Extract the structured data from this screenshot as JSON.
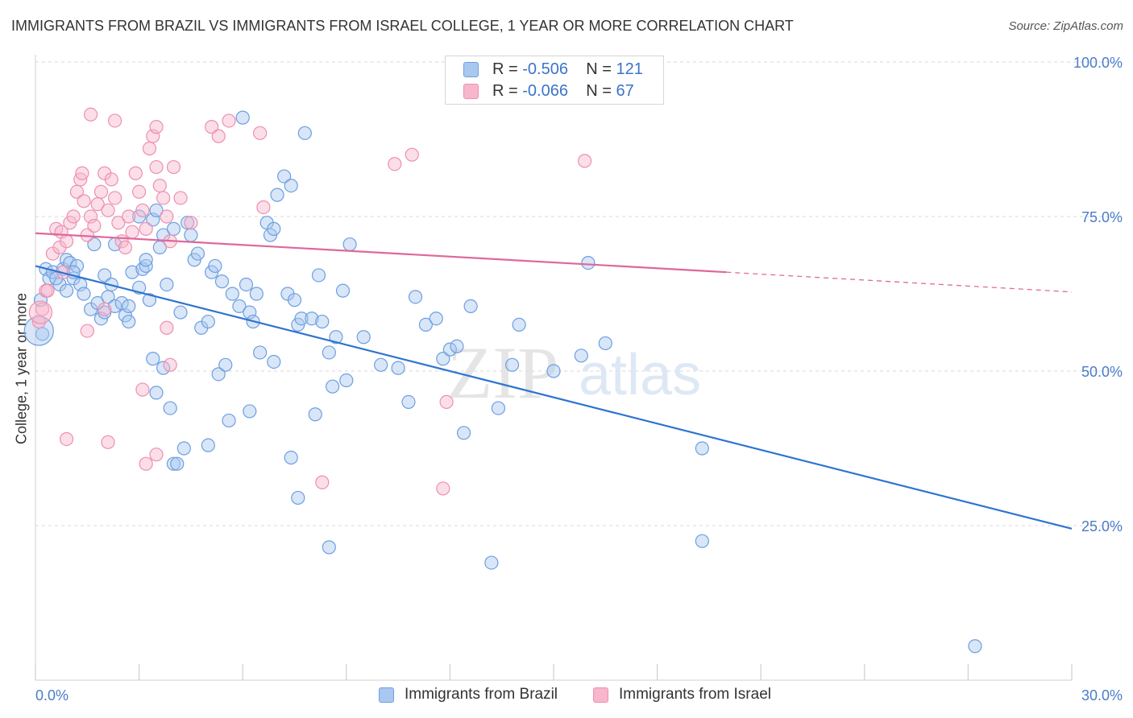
{
  "title": "IMMIGRANTS FROM BRAZIL VS IMMIGRANTS FROM ISRAEL COLLEGE, 1 YEAR OR MORE CORRELATION CHART",
  "source": "Source: ZipAtlas.com",
  "watermark": {
    "zip": "ZIP",
    "atlas": "atlas"
  },
  "legend": {
    "rows": [
      {
        "r_label": "R = ",
        "r_value": "-0.506",
        "n_label": "N = ",
        "n_value": "121"
      },
      {
        "r_label": "R = ",
        "r_value": "-0.066",
        "n_label": "N = ",
        "n_value": "67"
      }
    ]
  },
  "bottom_legend": [
    "Immigrants from Brazil",
    "Immigrants from Israel"
  ],
  "colors": {
    "brazil_fill": "#a9c8f0",
    "brazil_stroke": "#6d9fe0",
    "brazil_line": "#2f74d0",
    "israel_fill": "#f7b6cb",
    "israel_stroke": "#ee8fae",
    "israel_line": "#e0679a",
    "tick_text": "#4a7cc9",
    "grid": "#d8d8d8"
  },
  "chart_data": {
    "type": "scatter",
    "title": "IMMIGRANTS FROM BRAZIL VS IMMIGRANTS FROM ISRAEL COLLEGE, 1 YEAR OR MORE CORRELATION CHART",
    "xlabel": "",
    "ylabel": "College, 1 year or more",
    "xlim": [
      0,
      30
    ],
    "ylim": [
      0,
      100
    ],
    "x_tick_labels": [
      "0.0%",
      "30.0%"
    ],
    "y_tick_values": [
      25,
      50,
      75,
      100
    ],
    "y_tick_labels": [
      "25.0%",
      "50.0%",
      "75.0%",
      "100.0%"
    ],
    "grid": "horizontal dashed",
    "legend_position": "top-center",
    "series": [
      {
        "name": "Immigrants from Brazil",
        "r": -0.506,
        "n": 121,
        "trend": {
          "x": [
            0,
            30
          ],
          "y": [
            67.0,
            24.5
          ]
        },
        "points": [
          [
            0.15,
            61.5
          ],
          [
            0.3,
            66.5
          ],
          [
            0.4,
            65
          ],
          [
            0.5,
            66
          ],
          [
            0.7,
            64
          ],
          [
            0.8,
            66.5
          ],
          [
            0.9,
            68
          ],
          [
            1.0,
            67.5
          ],
          [
            1.1,
            65
          ],
          [
            1.2,
            67
          ],
          [
            1.3,
            64
          ],
          [
            1.4,
            62.5
          ],
          [
            1.6,
            60
          ],
          [
            1.8,
            61
          ],
          [
            1.9,
            58.5
          ],
          [
            2.0,
            65.5
          ],
          [
            2.1,
            62
          ],
          [
            2.2,
            64
          ],
          [
            2.3,
            60.5
          ],
          [
            2.5,
            61
          ],
          [
            2.6,
            59
          ],
          [
            2.7,
            60.5
          ],
          [
            2.8,
            66
          ],
          [
            3.0,
            63.5
          ],
          [
            3.1,
            66.5
          ],
          [
            3.2,
            67
          ],
          [
            3.3,
            61.5
          ],
          [
            1.7,
            70.5
          ],
          [
            2.3,
            70.5
          ],
          [
            3.0,
            75
          ],
          [
            3.4,
            74.5
          ],
          [
            3.5,
            76
          ],
          [
            3.6,
            70
          ],
          [
            3.7,
            72
          ],
          [
            3.8,
            64
          ],
          [
            4.0,
            73
          ],
          [
            4.2,
            59.5
          ],
          [
            4.4,
            74
          ],
          [
            4.5,
            72
          ],
          [
            4.6,
            68
          ],
          [
            4.8,
            57
          ],
          [
            5.0,
            58
          ],
          [
            5.1,
            66
          ],
          [
            5.2,
            67
          ],
          [
            4.7,
            69
          ],
          [
            5.3,
            49.5
          ],
          [
            5.5,
            51
          ],
          [
            5.7,
            62.5
          ],
          [
            5.9,
            60.5
          ],
          [
            6.1,
            64
          ],
          [
            6.2,
            59.5
          ],
          [
            6.3,
            58
          ],
          [
            6.4,
            62.5
          ],
          [
            6.0,
            91
          ],
          [
            6.5,
            53
          ],
          [
            6.7,
            74
          ],
          [
            6.8,
            72
          ],
          [
            6.9,
            73
          ],
          [
            7.2,
            81.5
          ],
          [
            7.3,
            62.5
          ],
          [
            7.5,
            61.5
          ],
          [
            7.6,
            57.5
          ],
          [
            7.7,
            58.5
          ],
          [
            7.8,
            88.5
          ],
          [
            7.0,
            78.5
          ],
          [
            7.4,
            80
          ],
          [
            8.0,
            58.5
          ],
          [
            8.2,
            65.5
          ],
          [
            8.3,
            58
          ],
          [
            8.5,
            53
          ],
          [
            8.6,
            47.5
          ],
          [
            8.7,
            55.5
          ],
          [
            9.0,
            48.5
          ],
          [
            9.1,
            70.5
          ],
          [
            9.5,
            55.5
          ],
          [
            10.0,
            51
          ],
          [
            10.5,
            50.5
          ],
          [
            10.8,
            45
          ],
          [
            11.0,
            62
          ],
          [
            11.3,
            57.5
          ],
          [
            11.6,
            58.5
          ],
          [
            11.8,
            52
          ],
          [
            12.0,
            53.5
          ],
          [
            12.2,
            54
          ],
          [
            12.4,
            40
          ],
          [
            12.6,
            60.5
          ],
          [
            13.4,
            44
          ],
          [
            13.8,
            51
          ],
          [
            14.0,
            57.5
          ],
          [
            15.0,
            50
          ],
          [
            15.8,
            52.5
          ],
          [
            16.0,
            67.5
          ],
          [
            16.5,
            54.5
          ],
          [
            3.4,
            52
          ],
          [
            3.5,
            46.5
          ],
          [
            3.7,
            50.5
          ],
          [
            3.9,
            44
          ],
          [
            4.3,
            37.5
          ],
          [
            4.0,
            35
          ],
          [
            4.1,
            35
          ],
          [
            5.0,
            38
          ],
          [
            5.6,
            42
          ],
          [
            6.2,
            43.5
          ],
          [
            6.9,
            51.5
          ],
          [
            7.4,
            36
          ],
          [
            7.6,
            29.5
          ],
          [
            8.1,
            43
          ],
          [
            8.5,
            21.5
          ],
          [
            13.2,
            19
          ],
          [
            19.3,
            37.5
          ],
          [
            19.3,
            22.5
          ],
          [
            27.2,
            5.5
          ],
          [
            0.2,
            56
          ],
          [
            0.6,
            65
          ],
          [
            2.0,
            59.5
          ],
          [
            1.1,
            66
          ],
          [
            0.9,
            63
          ],
          [
            3.2,
            68
          ],
          [
            2.7,
            58
          ],
          [
            5.4,
            64.5
          ],
          [
            8.9,
            63
          ]
        ]
      },
      {
        "name": "Immigrants from Israel",
        "r": -0.066,
        "n": 67,
        "trend": {
          "x": [
            0,
            20
          ],
          "y": [
            72.3,
            66.0
          ],
          "dashed_to": {
            "x": 30,
            "y": 62.8
          }
        },
        "points": [
          [
            0.1,
            58
          ],
          [
            0.2,
            60
          ],
          [
            0.3,
            63
          ],
          [
            0.35,
            63
          ],
          [
            0.5,
            69
          ],
          [
            0.6,
            73
          ],
          [
            0.7,
            70
          ],
          [
            0.75,
            72.5
          ],
          [
            0.8,
            66
          ],
          [
            0.9,
            71
          ],
          [
            1.0,
            74
          ],
          [
            1.1,
            75
          ],
          [
            1.2,
            79
          ],
          [
            1.3,
            81
          ],
          [
            1.35,
            82
          ],
          [
            1.4,
            77.5
          ],
          [
            1.5,
            72
          ],
          [
            1.6,
            75
          ],
          [
            1.7,
            73.5
          ],
          [
            1.8,
            77
          ],
          [
            1.9,
            79
          ],
          [
            2.0,
            82
          ],
          [
            2.1,
            76
          ],
          [
            2.2,
            81
          ],
          [
            2.3,
            78
          ],
          [
            2.4,
            74
          ],
          [
            2.5,
            71
          ],
          [
            2.6,
            70
          ],
          [
            2.7,
            75
          ],
          [
            2.8,
            72.5
          ],
          [
            2.9,
            82
          ],
          [
            3.0,
            79
          ],
          [
            3.1,
            76
          ],
          [
            3.2,
            73
          ],
          [
            3.3,
            86
          ],
          [
            3.4,
            88
          ],
          [
            3.5,
            83
          ],
          [
            3.6,
            80
          ],
          [
            3.7,
            78
          ],
          [
            3.8,
            75
          ],
          [
            3.9,
            71
          ],
          [
            4.0,
            83
          ],
          [
            4.2,
            78
          ],
          [
            4.5,
            74
          ],
          [
            1.6,
            91.5
          ],
          [
            2.3,
            90.5
          ],
          [
            3.5,
            89.5
          ],
          [
            5.1,
            89.5
          ],
          [
            5.3,
            88
          ],
          [
            5.6,
            90.5
          ],
          [
            6.5,
            88.5
          ],
          [
            10.4,
            83.5
          ],
          [
            10.9,
            85
          ],
          [
            15.9,
            84
          ],
          [
            0.9,
            39
          ],
          [
            2.1,
            38.5
          ],
          [
            3.1,
            47
          ],
          [
            3.2,
            35
          ],
          [
            3.5,
            36.5
          ],
          [
            3.8,
            57
          ],
          [
            3.9,
            51
          ],
          [
            8.3,
            32
          ],
          [
            11.9,
            45
          ],
          [
            11.8,
            31
          ],
          [
            1.5,
            56.5
          ],
          [
            6.6,
            76.5
          ],
          [
            2.0,
            60
          ]
        ]
      }
    ]
  }
}
